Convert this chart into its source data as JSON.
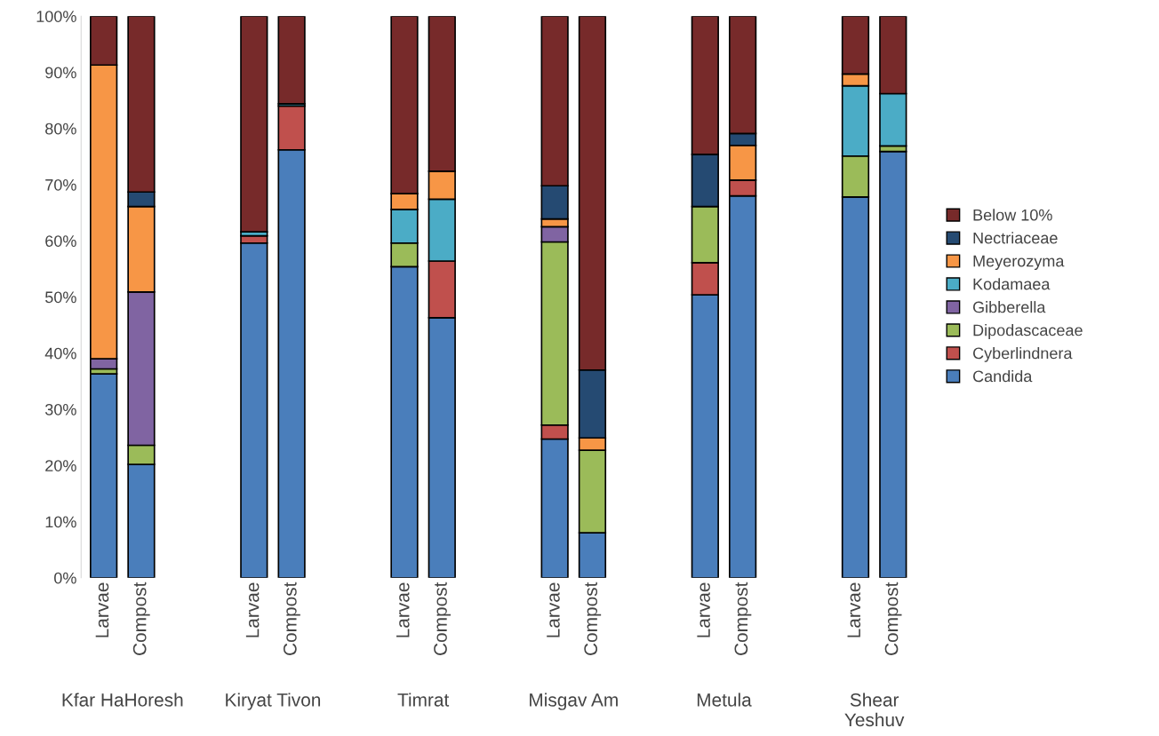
{
  "chart_data": {
    "type": "bar",
    "stacked": true,
    "categories": [
      "Larvae",
      "Compost",
      null,
      null,
      "Larvae",
      "Compost",
      null,
      null,
      "Larvae",
      "Compost",
      null,
      null,
      "Larvae",
      "Compost",
      null,
      null,
      "Larvae",
      "Compost",
      null,
      null,
      "Larvae",
      "Compost"
    ],
    "annotations": [
      "Kfar HaHoresh",
      "Kiryat Tivon",
      "Timrat",
      "Misgav Am",
      "Metula",
      "Shear\nYeshuv"
    ],
    "ylim": [
      0,
      100
    ],
    "yticks": [
      {
        "value": 0,
        "label": "0%"
      },
      {
        "value": 10,
        "label": "10%"
      },
      {
        "value": 20,
        "label": "20%"
      },
      {
        "value": 30,
        "label": "30%"
      },
      {
        "value": 40,
        "label": "40%"
      },
      {
        "value": 50,
        "label": "50%"
      },
      {
        "value": 60,
        "label": "60%"
      },
      {
        "value": 70,
        "label": "70%"
      },
      {
        "value": 80,
        "label": "80%"
      },
      {
        "value": 90,
        "label": "90%"
      },
      {
        "value": 100,
        "label": "100%"
      }
    ],
    "grid": false,
    "legend": "right",
    "series": [
      {
        "name": "Candida",
        "color": "#4a7ebb",
        "values": [
          36.3,
          20.2,
          null,
          null,
          59.6,
          76.2,
          null,
          null,
          55.4,
          46.3,
          null,
          null,
          24.7,
          8.0,
          null,
          null,
          50.4,
          68.0,
          null,
          null,
          67.8,
          75.9
        ]
      },
      {
        "name": "Cyberlindnera",
        "color": "#c0504d",
        "values": [
          null,
          null,
          null,
          null,
          1.3,
          7.8,
          null,
          null,
          null,
          10.1,
          null,
          null,
          2.5,
          null,
          null,
          null,
          5.7,
          2.8,
          null,
          null,
          null,
          null
        ]
      },
      {
        "name": "Dipodascaceae",
        "color": "#9bbb59",
        "values": [
          0.9,
          3.4,
          null,
          null,
          null,
          null,
          null,
          null,
          4.2,
          null,
          null,
          null,
          32.6,
          14.7,
          null,
          null,
          10.0,
          null,
          null,
          null,
          7.3,
          1.0
        ]
      },
      {
        "name": "Gibberella",
        "color": "#8064a2",
        "values": [
          1.8,
          27.3,
          null,
          null,
          null,
          null,
          null,
          null,
          null,
          null,
          null,
          null,
          2.7,
          null,
          null,
          null,
          null,
          null,
          null,
          null,
          null,
          null
        ]
      },
      {
        "name": "Kodamaea",
        "color": "#4bacc6",
        "values": [
          null,
          null,
          null,
          null,
          0.7,
          0.4,
          null,
          null,
          6.0,
          11.0,
          null,
          null,
          null,
          null,
          null,
          null,
          null,
          null,
          null,
          null,
          12.5,
          9.3
        ]
      },
      {
        "name": "Meyerozyma",
        "color": "#f79646",
        "values": [
          52.3,
          15.2,
          null,
          null,
          null,
          null,
          null,
          null,
          2.8,
          5.0,
          null,
          null,
          1.4,
          2.2,
          null,
          null,
          null,
          6.2,
          null,
          null,
          2.1,
          null
        ]
      },
      {
        "name": "Nectriaceae",
        "color": "#254a72",
        "values": [
          null,
          2.6,
          null,
          null,
          null,
          null,
          null,
          null,
          null,
          null,
          null,
          null,
          5.9,
          12.1,
          null,
          null,
          9.3,
          2.1,
          null,
          null,
          null,
          null
        ]
      },
      {
        "name": "Below 10%",
        "color": "#772a2a",
        "values": [
          8.7,
          31.3,
          null,
          null,
          38.4,
          15.6,
          null,
          null,
          31.6,
          27.6,
          null,
          null,
          30.2,
          63.0,
          null,
          null,
          24.6,
          20.9,
          null,
          null,
          10.3,
          13.8
        ]
      }
    ]
  }
}
